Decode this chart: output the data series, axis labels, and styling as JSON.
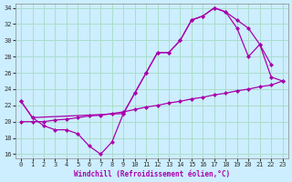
{
  "xlabel": "Windchill (Refroidissement éolien,°C)",
  "bg_color": "#cceeff",
  "grid_color": "#aaddcc",
  "line_color": "#aa00aa",
  "xlim": [
    -0.5,
    23.5
  ],
  "ylim": [
    15.5,
    34.5
  ],
  "xticks": [
    0,
    1,
    2,
    3,
    4,
    5,
    6,
    7,
    8,
    9,
    10,
    11,
    12,
    13,
    14,
    15,
    16,
    17,
    18,
    19,
    20,
    21,
    22,
    23
  ],
  "yticks": [
    16,
    18,
    20,
    22,
    24,
    26,
    28,
    30,
    32,
    34
  ],
  "curve1_x": [
    0,
    1,
    2,
    3,
    4,
    5,
    6,
    7,
    8,
    9,
    10,
    11,
    12,
    13,
    14,
    15,
    16,
    17,
    18,
    19,
    20,
    21,
    22
  ],
  "curve1_y": [
    22.5,
    20.5,
    19.5,
    19.0,
    19.0,
    18.5,
    17.0,
    16.0,
    17.5,
    21.0,
    23.5,
    26.0,
    28.5,
    28.5,
    30.0,
    32.5,
    33.0,
    34.0,
    33.5,
    31.5,
    28.0,
    29.5,
    27.0
  ],
  "curve2_x": [
    0,
    1,
    9,
    10,
    11,
    12,
    13,
    14,
    15,
    16,
    17,
    18,
    19,
    20,
    21,
    22,
    23
  ],
  "curve2_y": [
    22.5,
    20.5,
    21.0,
    23.5,
    26.0,
    28.5,
    28.5,
    30.0,
    32.5,
    33.0,
    34.0,
    33.5,
    32.5,
    31.5,
    29.5,
    25.5,
    25.0
  ],
  "curve3_x": [
    0,
    1,
    2,
    3,
    4,
    5,
    6,
    7,
    8,
    9,
    10,
    11,
    12,
    13,
    14,
    15,
    16,
    17,
    18,
    19,
    20,
    21,
    22,
    23
  ],
  "curve3_y": [
    20.0,
    20.0,
    20.0,
    20.2,
    20.3,
    20.5,
    20.7,
    20.8,
    21.0,
    21.2,
    21.5,
    21.8,
    22.0,
    22.3,
    22.5,
    22.8,
    23.0,
    23.3,
    23.5,
    23.8,
    24.0,
    24.3,
    24.5,
    25.0
  ],
  "font_family": "monospace"
}
